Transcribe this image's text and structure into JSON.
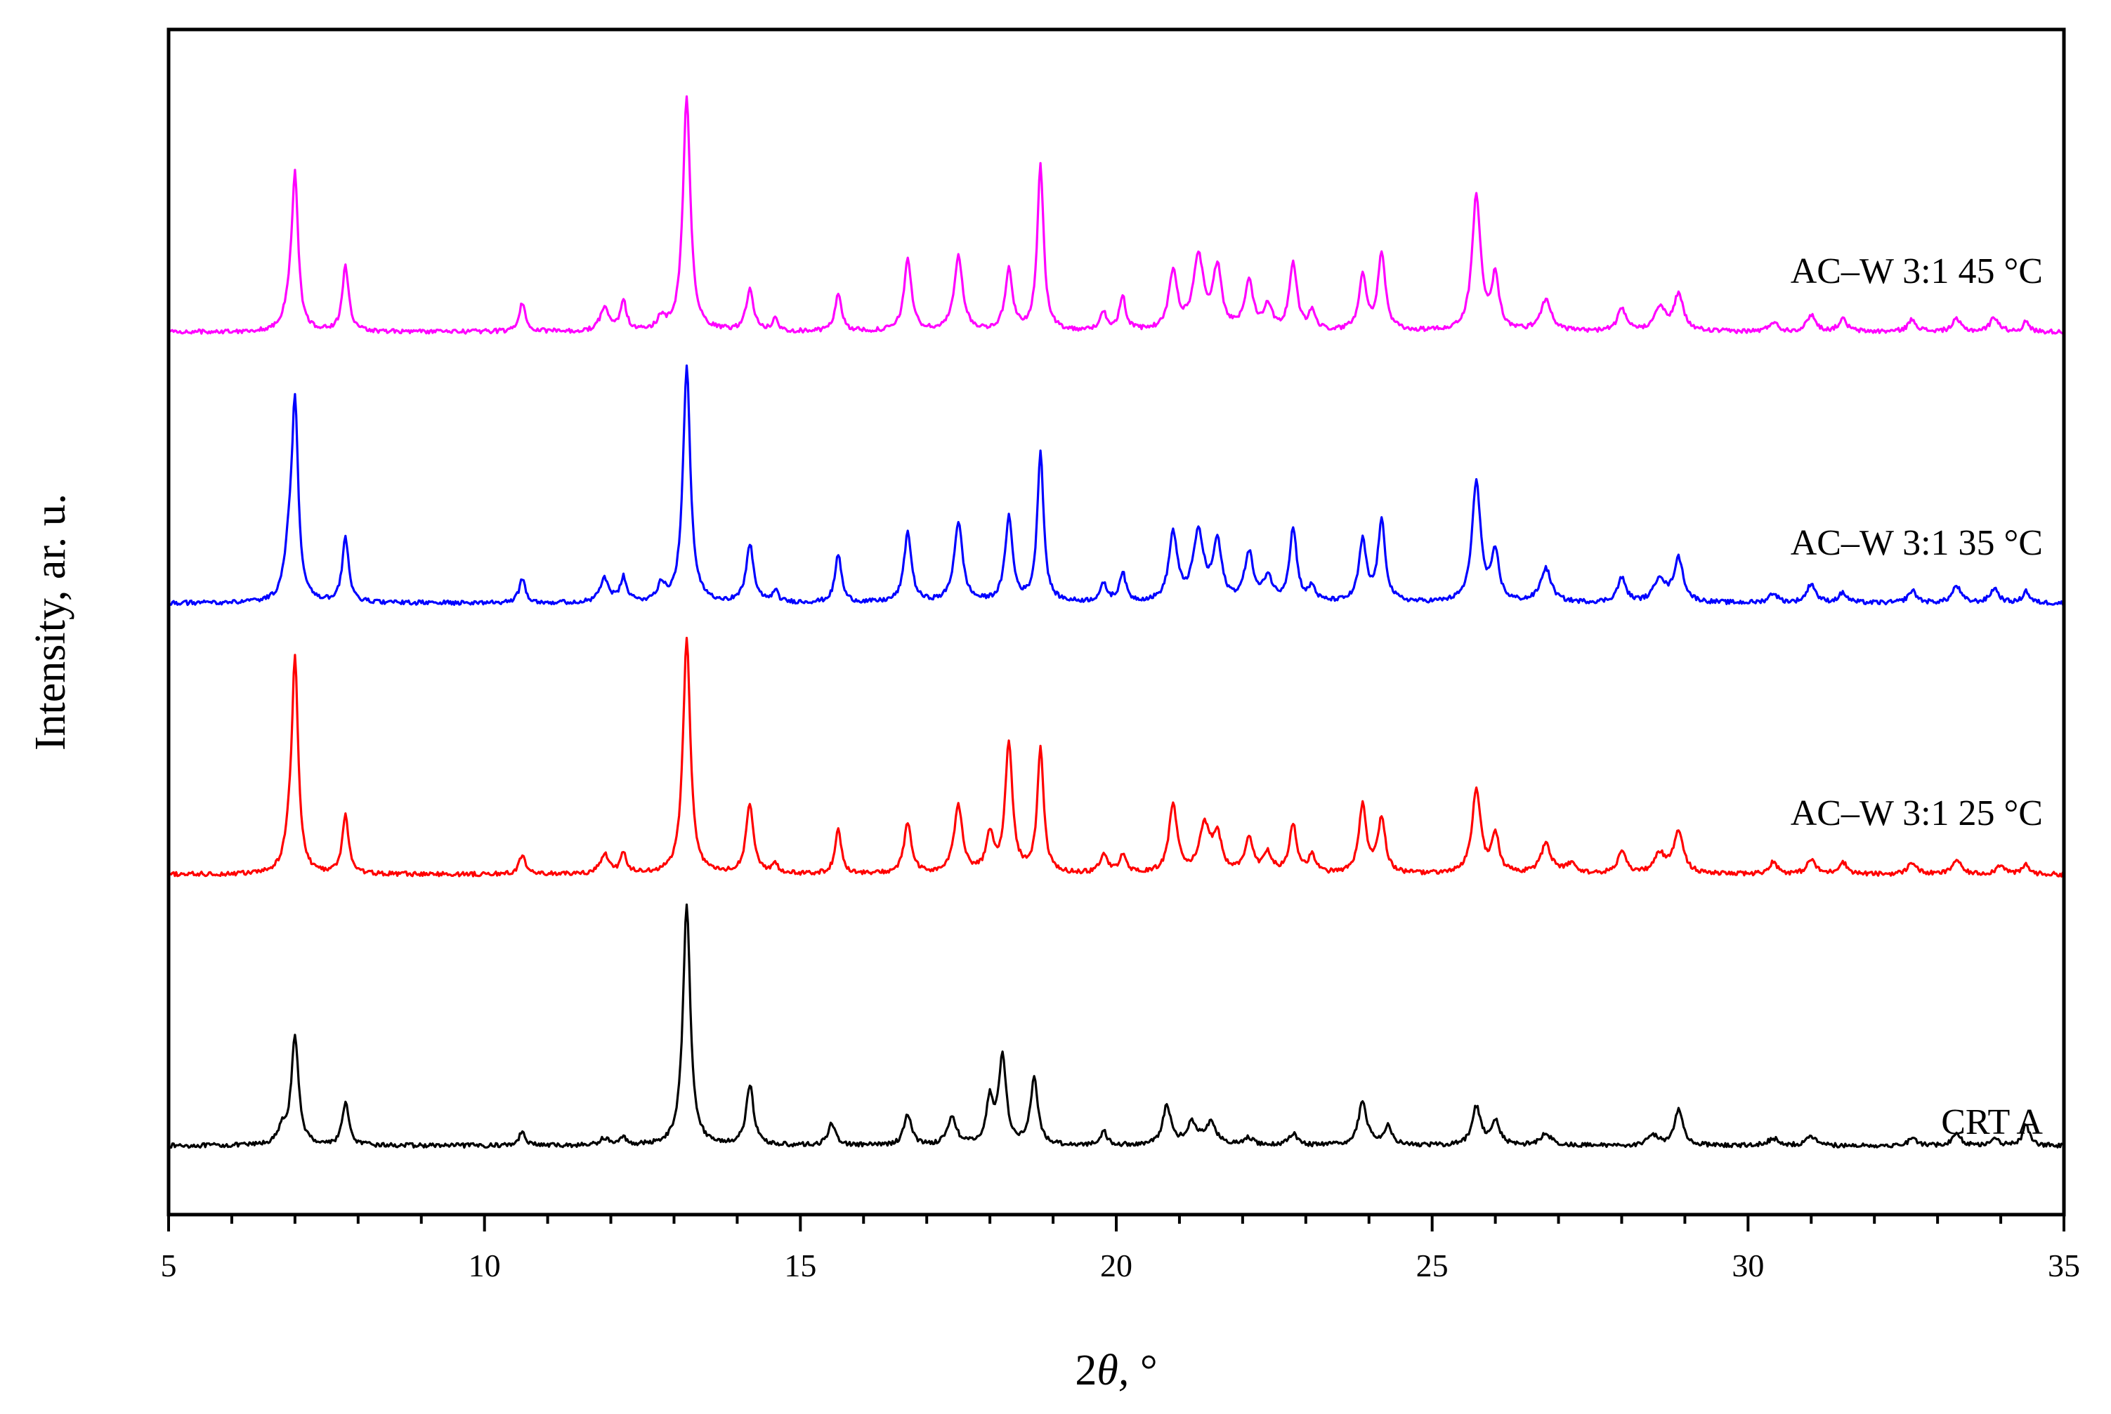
{
  "chart_data": {
    "type": "line",
    "title": "",
    "xlabel_prefix": "2",
    "xlabel_symbol": "θ,",
    "xlabel_suffix": " °",
    "ylabel": "Intensity, ar. u.",
    "xlim": [
      5,
      35
    ],
    "xticks": [
      5,
      10,
      15,
      20,
      25,
      30,
      35
    ],
    "minor_xtick_step": 1,
    "y_ticks_shown": false,
    "grid": false,
    "legend": "inline labels at right",
    "stacking": "vertically offset traces",
    "series": [
      {
        "name": "CRT A",
        "color": "#000000",
        "baseline": 0.0,
        "peaks": [
          [
            6.8,
            0.06,
            0.08
          ],
          [
            7.0,
            0.44,
            0.07
          ],
          [
            7.8,
            0.18,
            0.06
          ],
          [
            10.6,
            0.06,
            0.06
          ],
          [
            11.9,
            0.03,
            0.08
          ],
          [
            12.2,
            0.03,
            0.06
          ],
          [
            13.2,
            1.0,
            0.07
          ],
          [
            14.2,
            0.25,
            0.07
          ],
          [
            15.5,
            0.09,
            0.07
          ],
          [
            16.7,
            0.13,
            0.07
          ],
          [
            17.4,
            0.12,
            0.08
          ],
          [
            18.0,
            0.18,
            0.07
          ],
          [
            18.2,
            0.36,
            0.07
          ],
          [
            18.7,
            0.27,
            0.07
          ],
          [
            19.8,
            0.06,
            0.06
          ],
          [
            20.8,
            0.16,
            0.08
          ],
          [
            21.2,
            0.09,
            0.1
          ],
          [
            21.5,
            0.09,
            0.1
          ],
          [
            22.1,
            0.03,
            0.08
          ],
          [
            22.8,
            0.05,
            0.08
          ],
          [
            23.9,
            0.18,
            0.08
          ],
          [
            24.3,
            0.08,
            0.08
          ],
          [
            25.7,
            0.16,
            0.08
          ],
          [
            26.0,
            0.1,
            0.08
          ],
          [
            26.8,
            0.05,
            0.1
          ],
          [
            28.5,
            0.04,
            0.1
          ],
          [
            28.9,
            0.15,
            0.08
          ],
          [
            30.4,
            0.03,
            0.1
          ],
          [
            31.0,
            0.04,
            0.08
          ],
          [
            32.6,
            0.03,
            0.08
          ],
          [
            33.3,
            0.05,
            0.08
          ],
          [
            33.9,
            0.03,
            0.08
          ],
          [
            34.4,
            0.09,
            0.06
          ]
        ]
      },
      {
        "name": "AC–W 3:1 25 °C",
        "color": "#ff0000",
        "baseline": 1.12,
        "peaks": [
          [
            6.9,
            0.1,
            0.08
          ],
          [
            7.0,
            0.87,
            0.06
          ],
          [
            7.8,
            0.24,
            0.06
          ],
          [
            10.6,
            0.08,
            0.06
          ],
          [
            11.9,
            0.08,
            0.08
          ],
          [
            12.2,
            0.08,
            0.06
          ],
          [
            13.2,
            0.97,
            0.07
          ],
          [
            14.2,
            0.29,
            0.07
          ],
          [
            14.6,
            0.04,
            0.05
          ],
          [
            15.6,
            0.18,
            0.06
          ],
          [
            16.7,
            0.21,
            0.07
          ],
          [
            17.5,
            0.28,
            0.08
          ],
          [
            18.0,
            0.15,
            0.07
          ],
          [
            18.3,
            0.53,
            0.07
          ],
          [
            18.8,
            0.51,
            0.06
          ],
          [
            19.8,
            0.08,
            0.07
          ],
          [
            20.1,
            0.08,
            0.06
          ],
          [
            20.9,
            0.28,
            0.08
          ],
          [
            21.4,
            0.19,
            0.1
          ],
          [
            21.6,
            0.15,
            0.08
          ],
          [
            22.1,
            0.14,
            0.08
          ],
          [
            22.4,
            0.08,
            0.08
          ],
          [
            22.8,
            0.2,
            0.07
          ],
          [
            23.1,
            0.08,
            0.06
          ],
          [
            23.9,
            0.28,
            0.07
          ],
          [
            24.2,
            0.23,
            0.07
          ],
          [
            25.7,
            0.35,
            0.08
          ],
          [
            26.0,
            0.16,
            0.07
          ],
          [
            26.8,
            0.12,
            0.1
          ],
          [
            27.2,
            0.04,
            0.1
          ],
          [
            28.0,
            0.09,
            0.08
          ],
          [
            28.6,
            0.08,
            0.1
          ],
          [
            28.9,
            0.18,
            0.09
          ],
          [
            30.4,
            0.05,
            0.08
          ],
          [
            31.0,
            0.06,
            0.08
          ],
          [
            31.5,
            0.05,
            0.08
          ],
          [
            32.6,
            0.05,
            0.08
          ],
          [
            33.3,
            0.06,
            0.08
          ],
          [
            34.0,
            0.04,
            0.08
          ],
          [
            34.4,
            0.04,
            0.06
          ]
        ]
      },
      {
        "name": "AC–W 3:1 35 °C",
        "color": "#0000ff",
        "baseline": 2.24,
        "peaks": [
          [
            6.9,
            0.18,
            0.08
          ],
          [
            7.0,
            0.8,
            0.06
          ],
          [
            7.8,
            0.27,
            0.06
          ],
          [
            10.6,
            0.1,
            0.06
          ],
          [
            11.9,
            0.1,
            0.08
          ],
          [
            12.2,
            0.1,
            0.06
          ],
          [
            12.8,
            0.07,
            0.07
          ],
          [
            13.2,
            0.97,
            0.07
          ],
          [
            14.2,
            0.24,
            0.07
          ],
          [
            14.6,
            0.05,
            0.05
          ],
          [
            15.6,
            0.2,
            0.06
          ],
          [
            16.7,
            0.29,
            0.07
          ],
          [
            17.5,
            0.33,
            0.08
          ],
          [
            18.3,
            0.35,
            0.07
          ],
          [
            18.8,
            0.62,
            0.06
          ],
          [
            19.8,
            0.07,
            0.07
          ],
          [
            20.1,
            0.12,
            0.06
          ],
          [
            20.9,
            0.28,
            0.08
          ],
          [
            21.3,
            0.28,
            0.1
          ],
          [
            21.6,
            0.24,
            0.08
          ],
          [
            22.1,
            0.2,
            0.08
          ],
          [
            22.4,
            0.1,
            0.08
          ],
          [
            22.8,
            0.3,
            0.07
          ],
          [
            23.1,
            0.06,
            0.06
          ],
          [
            23.9,
            0.25,
            0.07
          ],
          [
            24.2,
            0.33,
            0.07
          ],
          [
            25.7,
            0.5,
            0.08
          ],
          [
            26.0,
            0.2,
            0.07
          ],
          [
            26.8,
            0.14,
            0.1
          ],
          [
            28.0,
            0.1,
            0.08
          ],
          [
            28.6,
            0.1,
            0.1
          ],
          [
            28.9,
            0.18,
            0.09
          ],
          [
            30.4,
            0.04,
            0.08
          ],
          [
            31.0,
            0.08,
            0.08
          ],
          [
            31.5,
            0.04,
            0.08
          ],
          [
            32.6,
            0.05,
            0.08
          ],
          [
            33.3,
            0.07,
            0.08
          ],
          [
            33.9,
            0.06,
            0.08
          ],
          [
            34.4,
            0.05,
            0.06
          ]
        ]
      },
      {
        "name": "AC–W 3:1 45 °C",
        "color": "#ff00ff",
        "baseline": 3.36,
        "peaks": [
          [
            6.9,
            0.08,
            0.08
          ],
          [
            7.0,
            0.63,
            0.06
          ],
          [
            7.8,
            0.27,
            0.06
          ],
          [
            10.6,
            0.12,
            0.06
          ],
          [
            11.9,
            0.1,
            0.08
          ],
          [
            12.2,
            0.12,
            0.06
          ],
          [
            12.8,
            0.05,
            0.07
          ],
          [
            13.2,
            0.97,
            0.07
          ],
          [
            14.2,
            0.17,
            0.07
          ],
          [
            14.6,
            0.05,
            0.05
          ],
          [
            15.6,
            0.16,
            0.06
          ],
          [
            16.7,
            0.3,
            0.07
          ],
          [
            17.5,
            0.31,
            0.08
          ],
          [
            18.3,
            0.25,
            0.07
          ],
          [
            18.8,
            0.68,
            0.06
          ],
          [
            19.8,
            0.07,
            0.07
          ],
          [
            20.1,
            0.14,
            0.06
          ],
          [
            20.9,
            0.24,
            0.08
          ],
          [
            21.3,
            0.3,
            0.1
          ],
          [
            21.6,
            0.25,
            0.08
          ],
          [
            22.1,
            0.2,
            0.08
          ],
          [
            22.4,
            0.1,
            0.08
          ],
          [
            22.8,
            0.28,
            0.07
          ],
          [
            23.1,
            0.08,
            0.06
          ],
          [
            23.9,
            0.23,
            0.07
          ],
          [
            24.2,
            0.32,
            0.07
          ],
          [
            25.7,
            0.56,
            0.08
          ],
          [
            26.0,
            0.22,
            0.07
          ],
          [
            26.8,
            0.13,
            0.1
          ],
          [
            28.0,
            0.09,
            0.08
          ],
          [
            28.6,
            0.1,
            0.1
          ],
          [
            28.9,
            0.15,
            0.09
          ],
          [
            30.4,
            0.04,
            0.08
          ],
          [
            31.0,
            0.07,
            0.08
          ],
          [
            31.5,
            0.05,
            0.08
          ],
          [
            32.6,
            0.05,
            0.08
          ],
          [
            33.3,
            0.05,
            0.08
          ],
          [
            33.9,
            0.06,
            0.08
          ],
          [
            34.4,
            0.04,
            0.06
          ]
        ]
      }
    ]
  }
}
